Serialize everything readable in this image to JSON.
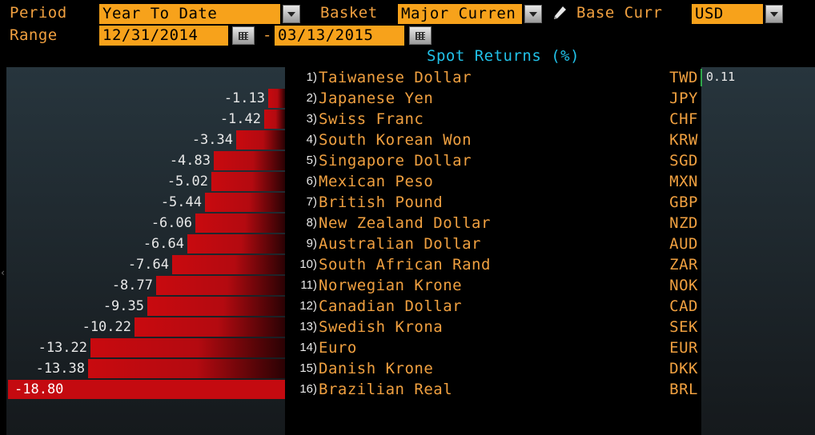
{
  "controls": {
    "period_label": "Period",
    "period_value": "Year To Date",
    "basket_label": "Basket",
    "basket_value": "Major Curren",
    "base_label": "Base Curr",
    "base_value": "USD",
    "range_label": "Range",
    "range_start": "12/31/2014",
    "range_sep": "-",
    "range_end": "03/13/2015"
  },
  "title": "Spot Returns (%)",
  "colors": {
    "accent": "#f7a21b",
    "label": "#f0a040",
    "title": "#21c1e8",
    "negative": "#c80a0f"
  },
  "chart_data": {
    "type": "bar",
    "title": "Spot Returns (%)",
    "orientation": "horizontal",
    "categories": [
      "Taiwanese Dollar",
      "Japanese Yen",
      "Swiss Franc",
      "South Korean Won",
      "Singapore Dollar",
      "Mexican Peso",
      "British Pound",
      "New Zealand Dollar",
      "Australian Dollar",
      "South African Rand",
      "Norwegian Krone",
      "Canadian Dollar",
      "Swedish Krona",
      "Euro",
      "Danish Krone",
      "Brazilian Real"
    ],
    "codes": [
      "TWD",
      "JPY",
      "CHF",
      "KRW",
      "SGD",
      "MXN",
      "GBP",
      "NZD",
      "AUD",
      "ZAR",
      "NOK",
      "CAD",
      "SEK",
      "EUR",
      "DKK",
      "BRL"
    ],
    "ranks": [
      "1)",
      "2)",
      "3)",
      "4)",
      "5)",
      "6)",
      "7)",
      "8)",
      "9)",
      "10)",
      "11)",
      "12)",
      "13)",
      "14)",
      "15)",
      "16)"
    ],
    "values": [
      0.11,
      -1.13,
      -1.42,
      -3.34,
      -4.83,
      -5.02,
      -5.44,
      -6.06,
      -6.64,
      -7.64,
      -8.77,
      -9.35,
      -10.22,
      -13.22,
      -13.38,
      -18.8
    ],
    "labels": [
      "0.11",
      "-1.13",
      "-1.42",
      "-3.34",
      "-4.83",
      "-5.02",
      "-5.44",
      "-6.06",
      "-6.64",
      "-7.64",
      "-8.77",
      "-9.35",
      "-10.22",
      "-13.22",
      "-13.38",
      "-18.80"
    ]
  }
}
